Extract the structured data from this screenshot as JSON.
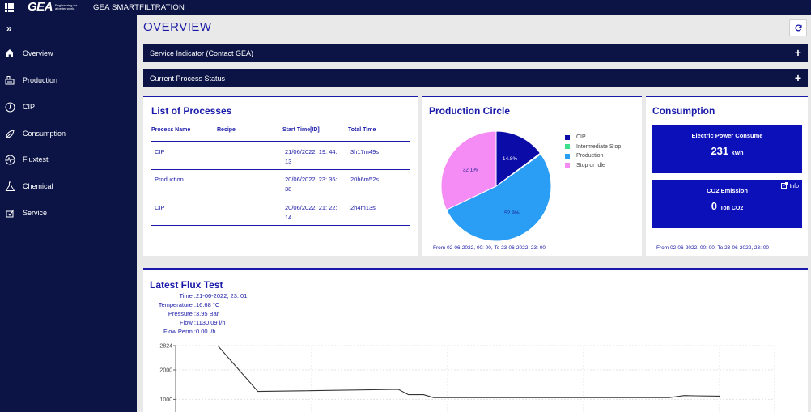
{
  "app": {
    "title": "GEA SMARTFILTRATION",
    "logo_text": "GEA",
    "logo_tagline": "Engineering for a better world."
  },
  "sidebar": {
    "collapse_label": "»",
    "items": [
      {
        "label": "Overview",
        "icon": "home-icon"
      },
      {
        "label": "Production",
        "icon": "production-icon"
      },
      {
        "label": "CIP",
        "icon": "cip-icon"
      },
      {
        "label": "Consumption",
        "icon": "consumption-icon"
      },
      {
        "label": "Fluxtest",
        "icon": "fluxtest-icon"
      },
      {
        "label": "Chemical",
        "icon": "chemical-icon"
      },
      {
        "label": "Service",
        "icon": "service-icon"
      }
    ]
  },
  "main": {
    "title": "OVERVIEW",
    "accordions": [
      {
        "label": "Service Indicator (Contact GEA)",
        "toggle": "+"
      },
      {
        "label": "Current Process Status",
        "toggle": "+"
      }
    ]
  },
  "processes": {
    "title": "List of Processes",
    "headers": [
      "Process Name",
      "Recipe",
      "Start Time[ID]",
      "Total Time"
    ],
    "rows": [
      {
        "name": "CIP",
        "recipe": "",
        "start_line1": "21/06/2022, 19: 44:",
        "start_line2": "13",
        "total": "3h17m49s"
      },
      {
        "name": "Production",
        "recipe": "",
        "start_line1": "20/06/2022, 23: 35:",
        "start_line2": "38",
        "total": "20h6m52s"
      },
      {
        "name": "CIP",
        "recipe": "",
        "start_line1": "20/06/2022, 21: 22:",
        "start_line2": "14",
        "total": "2h4m13s"
      }
    ]
  },
  "production_circle": {
    "title": "Production Circle",
    "range": "From 02-06-2022, 00: 00, To 23-06-2022, 23: 00"
  },
  "consumption": {
    "title": "Consumption",
    "electric": {
      "title": "Electric Power Consume",
      "value": "231",
      "unit": "kWh"
    },
    "co2": {
      "title": "CO2 Emission",
      "value": "0",
      "unit": "Ton CO2",
      "info_label": "Info"
    },
    "range": "From 02-06-2022, 00: 00, To 23-06-2022, 23: 00"
  },
  "flux": {
    "title": "Latest Flux Test",
    "details": [
      {
        "key": "Time :",
        "value": "21-06-2022, 23: 01"
      },
      {
        "key": "Temperature :",
        "value": "16.68 °C"
      },
      {
        "key": "Pressure :",
        "value": "3.95 Bar"
      },
      {
        "key": "Flow :",
        "value": "1130.09 l/h"
      },
      {
        "key": "Flow Perm :",
        "value": "0.00 l/h"
      }
    ]
  },
  "colors": {
    "navy": "#0b1445",
    "accent_blue": "#1a1aa8",
    "kpi_blue": "#0b10b8"
  },
  "chart_data": [
    {
      "type": "pie",
      "title": "Production Circle",
      "labels": [
        "CIP",
        "Intermediate Stop",
        "Production",
        "Stop or Idle"
      ],
      "values": [
        14.8,
        0.3,
        52.9,
        32.1
      ],
      "value_labels": [
        "14.8%",
        "",
        "52.9%",
        "32.1%"
      ],
      "colors": [
        "#0b0ba8",
        "#3de08a",
        "#2a9df4",
        "#f58cf5"
      ],
      "legend": "right"
    },
    {
      "type": "line",
      "title": "Latest Flux Test",
      "ytick_labels": [
        "2824",
        "2000",
        "1000"
      ],
      "ytick_values": [
        2824,
        2000,
        1000
      ],
      "ylim": [
        700,
        2824
      ],
      "x": [
        0,
        0.08,
        0.36,
        0.38,
        0.41,
        0.43,
        0.5,
        0.55,
        0.6,
        0.65,
        0.7,
        0.75,
        0.8,
        0.85,
        0.9,
        0.93,
        0.95,
        1.0
      ],
      "series": [
        {
          "values": [
            2824,
            1270,
            1340,
            1160,
            1160,
            1060,
            1060,
            1060,
            1060,
            1060,
            1060,
            1060,
            1060,
            1060,
            1060,
            1130,
            1120,
            1110
          ]
        }
      ],
      "grid": true
    }
  ]
}
